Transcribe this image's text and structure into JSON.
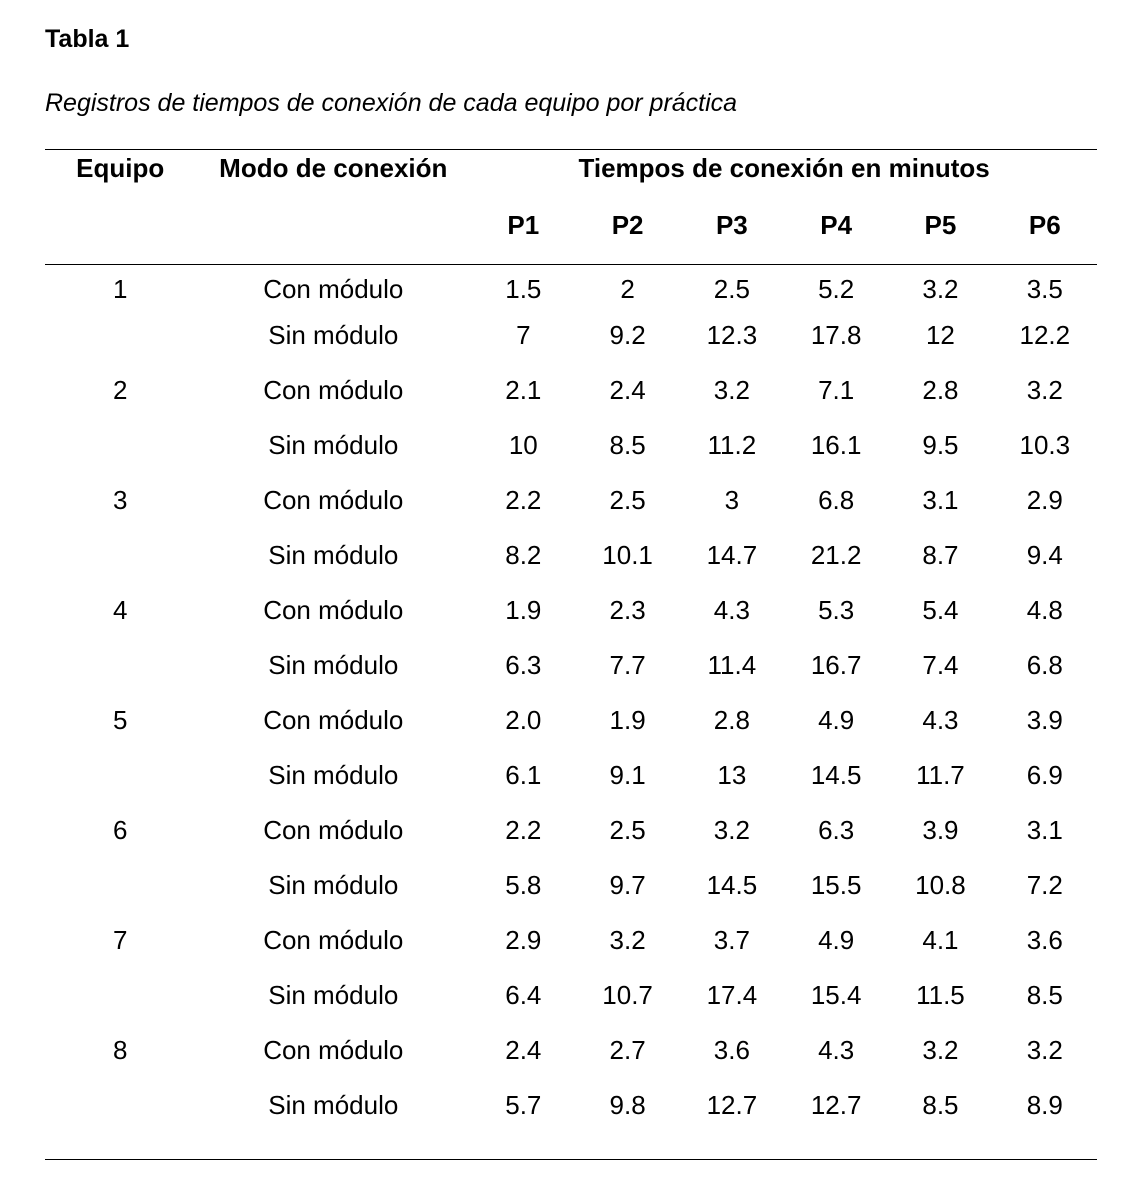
{
  "table_label": "Tabla 1",
  "caption": "Registros de tiempos de conexión de cada equipo por práctica",
  "headers": {
    "equipo": "Equipo",
    "modo": "Modo de conexión",
    "tiempos": "Tiempos de conexión en minutos",
    "practicas": [
      "P1",
      "P2",
      "P3",
      "P4",
      "P5",
      "P6"
    ]
  },
  "rows": [
    {
      "equipo": "1",
      "modo": "Con módulo",
      "values": [
        "1.5",
        "2",
        "2.5",
        "5.2",
        "3.2",
        "3.5"
      ]
    },
    {
      "equipo": "",
      "modo": "Sin módulo",
      "values": [
        "7",
        "9.2",
        "12.3",
        "17.8",
        "12",
        "12.2"
      ]
    },
    {
      "equipo": "2",
      "modo": "Con módulo",
      "values": [
        "2.1",
        "2.4",
        "3.2",
        "7.1",
        "2.8",
        "3.2"
      ]
    },
    {
      "equipo": "",
      "modo": "Sin módulo",
      "values": [
        "10",
        "8.5",
        "11.2",
        "16.1",
        "9.5",
        "10.3"
      ]
    },
    {
      "equipo": "3",
      "modo": "Con módulo",
      "values": [
        "2.2",
        "2.5",
        "3",
        "6.8",
        "3.1",
        "2.9"
      ]
    },
    {
      "equipo": "",
      "modo": "Sin módulo",
      "values": [
        "8.2",
        "10.1",
        "14.7",
        "21.2",
        "8.7",
        "9.4"
      ]
    },
    {
      "equipo": "4",
      "modo": "Con módulo",
      "values": [
        "1.9",
        "2.3",
        "4.3",
        "5.3",
        "5.4",
        "4.8"
      ]
    },
    {
      "equipo": "",
      "modo": "Sin módulo",
      "values": [
        "6.3",
        "7.7",
        "11.4",
        "16.7",
        "7.4",
        "6.8"
      ]
    },
    {
      "equipo": "5",
      "modo": "Con módulo",
      "values": [
        "2.0",
        "1.9",
        "2.8",
        "4.9",
        "4.3",
        "3.9"
      ]
    },
    {
      "equipo": "",
      "modo": "Sin módulo",
      "values": [
        "6.1",
        "9.1",
        "13",
        "14.5",
        "11.7",
        "6.9"
      ]
    },
    {
      "equipo": "6",
      "modo": "Con módulo",
      "values": [
        "2.2",
        "2.5",
        "3.2",
        "6.3",
        "3.9",
        "3.1"
      ]
    },
    {
      "equipo": "",
      "modo": "Sin módulo",
      "values": [
        "5.8",
        "9.7",
        "14.5",
        "15.5",
        "10.8",
        "7.2"
      ]
    },
    {
      "equipo": "7",
      "modo": "Con módulo",
      "values": [
        "2.9",
        "3.2",
        "3.7",
        "4.9",
        "4.1",
        "3.6"
      ]
    },
    {
      "equipo": "",
      "modo": "Sin módulo",
      "values": [
        "6.4",
        "10.7",
        "17.4",
        "15.4",
        "11.5",
        "8.5"
      ]
    },
    {
      "equipo": "8",
      "modo": "Con módulo",
      "values": [
        "2.4",
        "2.7",
        "3.6",
        "4.3",
        "3.2",
        "3.2"
      ]
    },
    {
      "equipo": "",
      "modo": "Sin módulo",
      "values": [
        "5.7",
        "9.8",
        "12.7",
        "12.7",
        "8.5",
        "8.9"
      ]
    }
  ]
}
